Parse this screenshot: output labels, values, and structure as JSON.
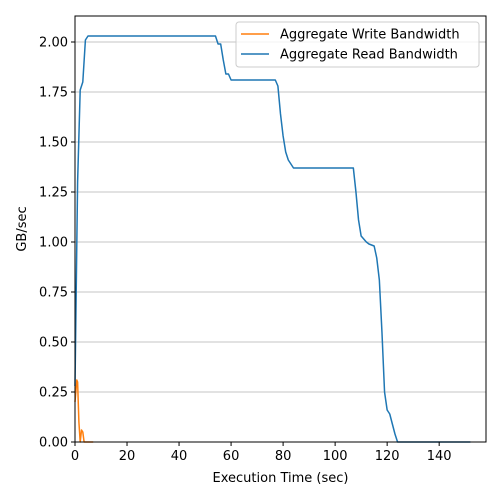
{
  "chart_data": {
    "type": "line",
    "xlabel": "Execution Time (sec)",
    "ylabel": "GB/sec",
    "xlim": [
      0,
      158
    ],
    "ylim": [
      0,
      2.13
    ],
    "x_ticks": [
      "0",
      "20",
      "40",
      "60",
      "80",
      "100",
      "120",
      "140"
    ],
    "x_tick_values": [
      0,
      20,
      40,
      60,
      80,
      100,
      120,
      140
    ],
    "y_ticks": [
      "0.00",
      "0.25",
      "0.50",
      "0.75",
      "1.00",
      "1.25",
      "1.50",
      "1.75",
      "2.00"
    ],
    "y_tick_values": [
      0,
      0.25,
      0.5,
      0.75,
      1.0,
      1.25,
      1.5,
      1.75,
      2.0
    ],
    "grid": "horizontal",
    "legend_position": "top-right",
    "series": [
      {
        "name": "Aggregate Write Bandwidth",
        "color": "#ff7f0e",
        "x": [
          0,
          0.7,
          1,
          1.5,
          2,
          2.5,
          3,
          3.5,
          4,
          5,
          6,
          7
        ],
        "y": [
          0.2,
          0.31,
          0.3,
          0.1,
          0.0,
          0.06,
          0.05,
          0.0,
          0.0,
          0.0,
          0.0,
          0.0
        ]
      },
      {
        "name": "Aggregate Read Bandwidth",
        "color": "#1f77b4",
        "x": [
          0,
          1,
          2,
          3,
          4,
          5,
          6,
          10,
          20,
          30,
          40,
          50,
          54,
          55,
          56,
          57,
          58,
          59,
          60,
          70,
          77,
          78,
          79,
          80,
          81,
          82,
          84,
          90,
          100,
          107,
          108,
          109,
          110,
          112,
          113,
          115,
          116,
          117,
          118,
          119,
          120,
          121,
          122,
          123,
          124,
          126,
          130,
          140,
          152
        ],
        "y": [
          0.28,
          1.3,
          1.76,
          1.8,
          2.01,
          2.03,
          2.03,
          2.03,
          2.03,
          2.03,
          2.03,
          2.03,
          2.03,
          1.99,
          1.99,
          1.91,
          1.84,
          1.84,
          1.81,
          1.81,
          1.81,
          1.78,
          1.64,
          1.53,
          1.45,
          1.41,
          1.37,
          1.37,
          1.37,
          1.37,
          1.25,
          1.11,
          1.03,
          1.0,
          0.99,
          0.98,
          0.92,
          0.81,
          0.55,
          0.25,
          0.16,
          0.14,
          0.09,
          0.04,
          0.0,
          0.0,
          0.0,
          0.0,
          0.0
        ]
      }
    ]
  }
}
